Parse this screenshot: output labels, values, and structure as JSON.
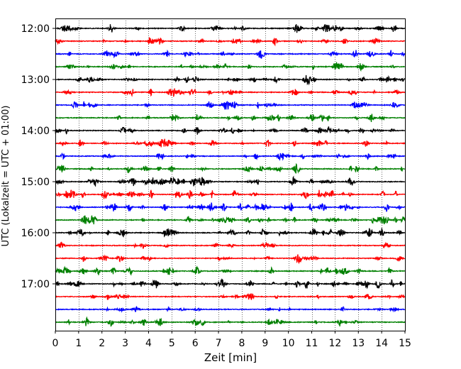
{
  "chart_data": {
    "type": "line",
    "title": "",
    "xlabel": "Zeit  [min]",
    "ylabel": "UTC (Lokalzeit = UTC + 01:00)",
    "xlim": [
      0,
      15
    ],
    "x_ticks": [
      0,
      1,
      2,
      3,
      4,
      5,
      6,
      7,
      8,
      9,
      10,
      11,
      12,
      13,
      14,
      15
    ],
    "x_tick_labels": [
      "0",
      "1",
      "2",
      "3",
      "4",
      "5",
      "6",
      "7",
      "8",
      "9",
      "10",
      "11",
      "12",
      "13",
      "14",
      "15"
    ],
    "y_tick_labels": [
      "12:00",
      "13:00",
      "14:00",
      "15:00",
      "16:00",
      "17:00"
    ],
    "vertical_grid": "dotted",
    "color_cycle": [
      "#000000",
      "#ff0000",
      "#0000ff",
      "#008000"
    ],
    "traces": [
      {
        "start": "12:00",
        "color": "#000000",
        "activity": 0.6
      },
      {
        "start": "12:15",
        "color": "#ff0000",
        "activity": 0.45
      },
      {
        "start": "12:30",
        "color": "#0000ff",
        "activity": 0.45
      },
      {
        "start": "12:45",
        "color": "#008000",
        "activity": 0.4
      },
      {
        "start": "13:00",
        "color": "#000000",
        "activity": 0.55
      },
      {
        "start": "13:15",
        "color": "#ff0000",
        "activity": 0.5
      },
      {
        "start": "13:30",
        "color": "#0000ff",
        "activity": 0.45
      },
      {
        "start": "13:45",
        "color": "#008000",
        "activity": 0.45
      },
      {
        "start": "14:00",
        "color": "#000000",
        "activity": 0.5
      },
      {
        "start": "14:15",
        "color": "#ff0000",
        "activity": 0.4
      },
      {
        "start": "14:30",
        "color": "#0000ff",
        "activity": 0.4
      },
      {
        "start": "14:45",
        "color": "#008000",
        "activity": 0.45
      },
      {
        "start": "15:00",
        "color": "#000000",
        "activity": 0.75
      },
      {
        "start": "15:15",
        "color": "#ff0000",
        "activity": 0.75
      },
      {
        "start": "15:30",
        "color": "#0000ff",
        "activity": 0.8
      },
      {
        "start": "15:45",
        "color": "#008000",
        "activity": 0.8
      },
      {
        "start": "16:00",
        "color": "#000000",
        "activity": 0.65
      },
      {
        "start": "16:15",
        "color": "#ff0000",
        "activity": 0.15
      },
      {
        "start": "16:30",
        "color": "#ff0000",
        "activity": 0.3
      },
      {
        "start": "16:45",
        "color": "#008000",
        "activity": 0.6
      },
      {
        "start": "17:00",
        "color": "#000000",
        "activity": 0.8
      },
      {
        "start": "17:15",
        "color": "#ff0000",
        "activity": 0.3
      },
      {
        "start": "17:30",
        "color": "#0000ff",
        "activity": 0.2
      },
      {
        "start": "17:45",
        "color": "#008000",
        "activity": 0.45
      }
    ]
  }
}
